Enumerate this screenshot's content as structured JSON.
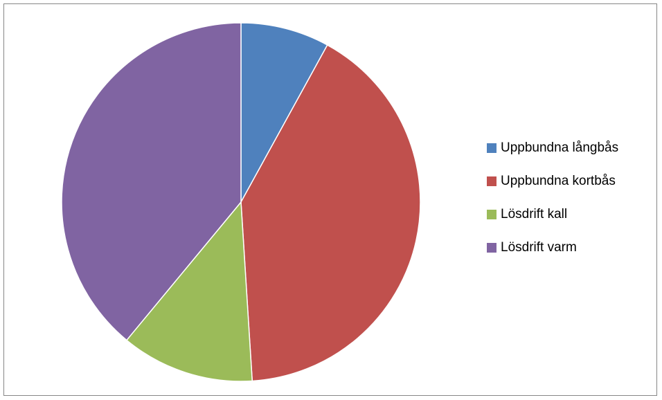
{
  "chart_data": {
    "type": "pie",
    "title": "",
    "categories": [
      "Uppbundna långbås",
      "Uppbundna kortbås",
      "Lösdrift kall",
      "Lösdrift varm"
    ],
    "values": [
      8,
      41,
      12,
      39
    ],
    "unit": "percent (estimated share of total)",
    "colors": [
      "#4F81BD",
      "#C0504D",
      "#9BBB59",
      "#8064A2"
    ],
    "start_angle": "12 o'clock",
    "direction": "clockwise",
    "legend_position": "right",
    "border": true
  }
}
